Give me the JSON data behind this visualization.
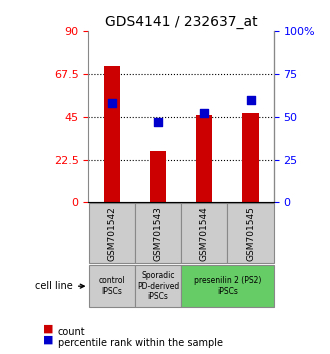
{
  "title": "GDS4141 / 232637_at",
  "samples": [
    "GSM701542",
    "GSM701543",
    "GSM701544",
    "GSM701545"
  ],
  "counts": [
    72,
    27,
    46,
    47
  ],
  "percentiles": [
    58,
    47,
    52,
    60
  ],
  "ylim_left": [
    0,
    90
  ],
  "ylim_right": [
    0,
    100
  ],
  "yticks_left": [
    0,
    22.5,
    45,
    67.5,
    90
  ],
  "ytick_labels_left": [
    "0",
    "22.5",
    "45",
    "67.5",
    "90"
  ],
  "yticks_right": [
    0,
    25,
    50,
    75,
    100
  ],
  "ytick_labels_right": [
    "0",
    "25",
    "50",
    "75",
    "100%"
  ],
  "bar_color": "#cc0000",
  "dot_color": "#0000cc",
  "grid_ticks": [
    22.5,
    45,
    67.5
  ],
  "cell_line_groups": [
    {
      "label": "control\nIPSCs",
      "start": 0,
      "end": 1,
      "color": "#cccccc"
    },
    {
      "label": "Sporadic\nPD-derived\niPSCs",
      "start": 1,
      "end": 2,
      "color": "#cccccc"
    },
    {
      "label": "presenilin 2 (PS2)\niPSCs",
      "start": 2,
      "end": 4,
      "color": "#66cc66"
    }
  ],
  "legend_count_label": "count",
  "legend_percentile_label": "percentile rank within the sample",
  "cell_line_text": "cell line",
  "bg_color": "#ffffff",
  "sample_box_color": "#cccccc"
}
